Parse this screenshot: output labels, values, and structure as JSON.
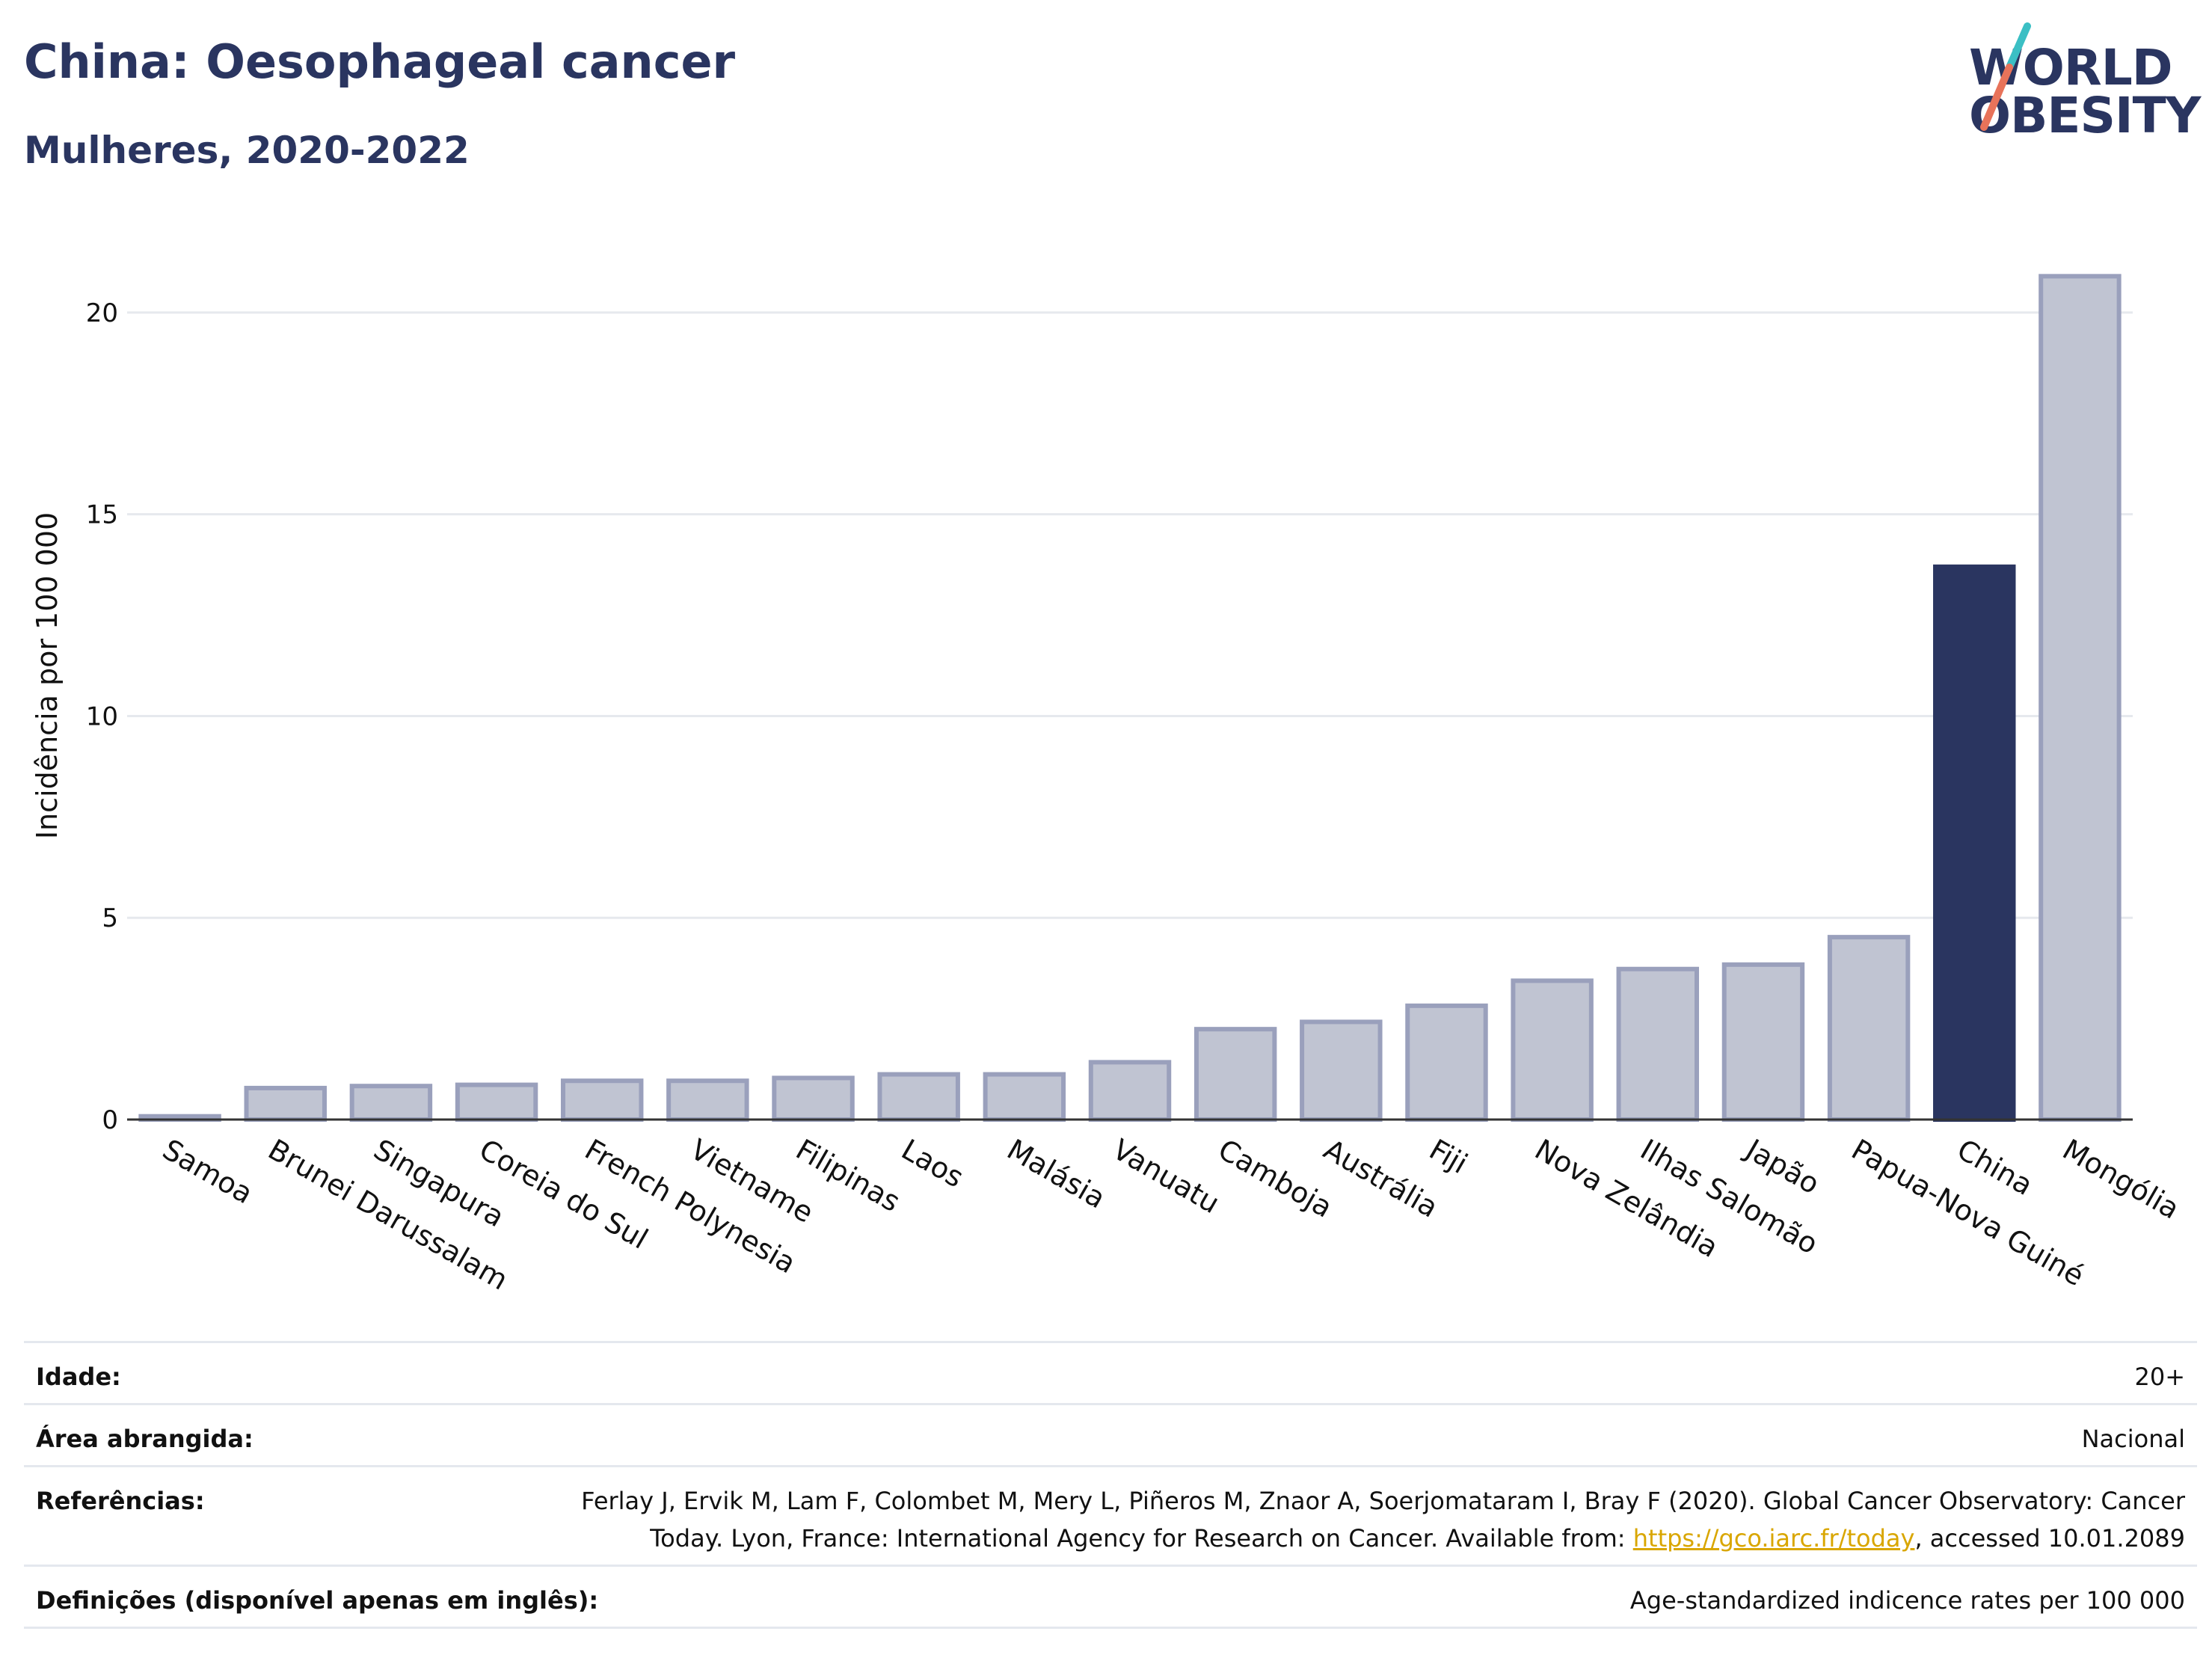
{
  "header": {
    "title": "China: Oesophageal cancer",
    "subtitle": "Mulheres, 2020-2022"
  },
  "logo": {
    "line1": "WORLD",
    "line2": "OBESITY",
    "slash_colors": [
      "#3bbfc4",
      "#e8735a"
    ]
  },
  "colors": {
    "highlight": "#2a3560",
    "bar_fill": "#c0c4d2",
    "bar_stroke": "#9aa0bc",
    "grid": "#e6e9ee",
    "axis": "#333333"
  },
  "chart_data": {
    "type": "bar",
    "title": "China: Oesophageal cancer",
    "subtitle": "Mulheres, 2020-2022",
    "xlabel": "",
    "ylabel": "Incidência por 100 000",
    "ylim": [
      0,
      22
    ],
    "yticks": [
      0,
      5,
      10,
      15,
      20
    ],
    "grid": true,
    "highlight": "China",
    "categories": [
      "Samoa",
      "Brunei Darussalam",
      "Singapura",
      "Coreia do Sul",
      "French Polynesia",
      "Vietname",
      "Filipinas",
      "Laos",
      "Malásia",
      "Vanuatu",
      "Camboja",
      "Austrália",
      "Fiji",
      "Nova Zelândia",
      "Ilhas Salomão",
      "Japão",
      "Papua-Nova Guiné",
      "China",
      "Mongólia"
    ],
    "values": [
      0.08,
      0.78,
      0.83,
      0.86,
      0.96,
      0.96,
      1.03,
      1.12,
      1.12,
      1.42,
      2.24,
      2.42,
      2.82,
      3.44,
      3.73,
      3.84,
      4.52,
      13.7,
      20.9
    ]
  },
  "footer": {
    "rows": [
      {
        "label": "Idade:",
        "value": "20+"
      },
      {
        "label": "Área abrangida:",
        "value": "Nacional"
      },
      {
        "label": "Referências:",
        "value_line1": "Ferlay J, Ervik M, Lam F, Colombet M, Mery L, Piñeros M, Znaor A, Soerjomataram I, Bray F (2020). Global Cancer Observatory: Cancer",
        "value_line2_pre": "Today. Lyon, France: International Agency for Research on Cancer. Available from: ",
        "link_text": "https://gco.iarc.fr/today",
        "value_line2_post": ", accessed 10.01.2089"
      },
      {
        "label": "Definições (disponível apenas em inglês):",
        "value": "Age-standardized indicence rates per 100 000"
      }
    ]
  }
}
